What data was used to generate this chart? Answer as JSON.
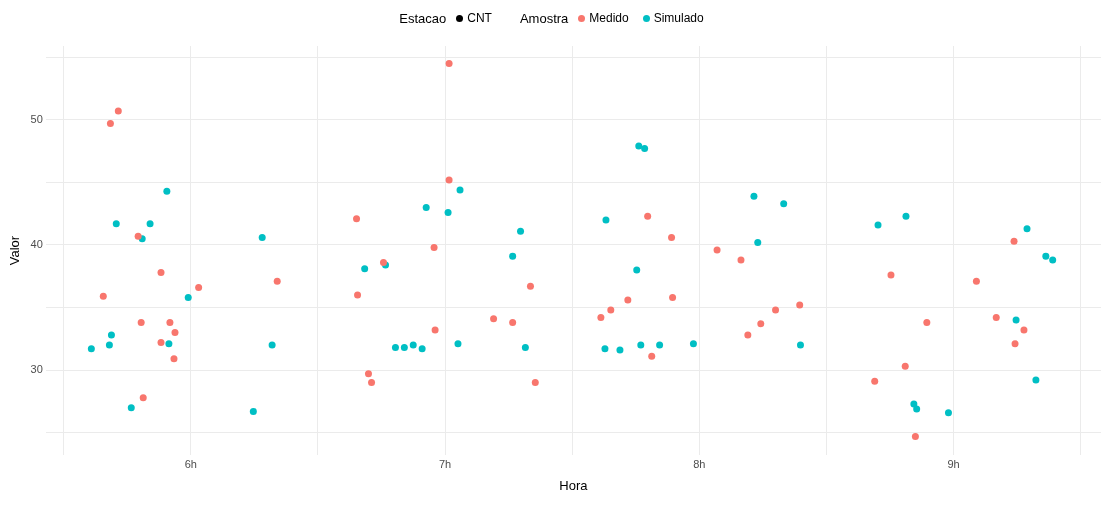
{
  "chart_data": {
    "type": "scatter",
    "xlabel": "Hora",
    "ylabel": "Valor",
    "legend_title": "Amostra",
    "annotations": [
      "Estacao",
      "CNT"
    ],
    "legend": "top",
    "grid": true,
    "marker": "circle",
    "xlim": [
      5.43,
      9.58
    ],
    "xticks": [
      {
        "value": 5.5,
        "label": null
      },
      {
        "value": 6,
        "label": "6h"
      },
      {
        "value": 6.5,
        "label": null
      },
      {
        "value": 7,
        "label": "7h"
      },
      {
        "value": 7.5,
        "label": null
      },
      {
        "value": 8,
        "label": "8h"
      },
      {
        "value": 8.5,
        "label": null
      },
      {
        "value": 9,
        "label": "9h"
      },
      {
        "value": 9.5,
        "label": null
      }
    ],
    "ylim": [
      23.2,
      55.9
    ],
    "yticks": [
      {
        "value": 25,
        "label": null
      },
      30,
      {
        "value": 35,
        "label": null
      },
      40,
      {
        "value": 45,
        "label": null
      },
      50,
      {
        "value": 55,
        "label": null
      }
    ],
    "series": [
      {
        "name": "Medido",
        "color": "#f8766d",
        "x": [
          5.656,
          5.684,
          5.715,
          5.793,
          5.805,
          5.813,
          5.883,
          5.883,
          5.918,
          5.938,
          5.934,
          6.031,
          6.34,
          6.652,
          6.656,
          6.699,
          6.711,
          6.758,
          6.957,
          6.961,
          7.016,
          7.016,
          7.191,
          7.266,
          7.336,
          7.355,
          7.613,
          7.652,
          7.719,
          7.797,
          7.813,
          7.891,
          7.895,
          8.07,
          8.164,
          8.191,
          8.242,
          8.3,
          8.395,
          8.69,
          8.754,
          8.81,
          8.85,
          8.895,
          9.09,
          9.168,
          9.238,
          9.242,
          9.277
        ],
        "values": [
          35.9,
          49.7,
          50.7,
          40.7,
          33.8,
          27.8,
          37.8,
          32.2,
          33.8,
          33.0,
          30.9,
          36.6,
          37.1,
          42.1,
          36.0,
          29.7,
          29.0,
          38.6,
          39.8,
          33.2,
          54.5,
          45.2,
          34.1,
          33.8,
          36.7,
          29.0,
          34.2,
          34.8,
          35.6,
          42.3,
          31.1,
          40.6,
          35.8,
          39.6,
          38.8,
          32.8,
          33.7,
          34.8,
          35.2,
          29.1,
          37.6,
          30.3,
          24.7,
          33.8,
          37.1,
          34.2,
          40.3,
          32.1,
          33.2
        ]
      },
      {
        "name": "Simulado",
        "color": "#00bfc4",
        "x": [
          5.609,
          5.68,
          5.688,
          5.707,
          5.766,
          5.809,
          5.84,
          5.906,
          5.914,
          5.99,
          6.246,
          6.281,
          6.32,
          6.684,
          6.766,
          6.805,
          6.84,
          6.875,
          6.91,
          6.926,
          7.012,
          7.059,
          7.051,
          7.266,
          7.297,
          7.316,
          7.629,
          7.633,
          7.688,
          7.754,
          7.762,
          7.785,
          7.77,
          7.844,
          7.977,
          8.215,
          8.23,
          8.332,
          8.398,
          8.703,
          8.813,
          8.844,
          8.855,
          8.98,
          9.246,
          9.289,
          9.324,
          9.363,
          9.39
        ],
        "values": [
          31.7,
          32.0,
          32.8,
          41.7,
          27.0,
          40.5,
          41.7,
          44.3,
          32.1,
          35.8,
          26.7,
          40.6,
          32.0,
          38.1,
          38.4,
          31.8,
          31.8,
          32.0,
          31.7,
          43.0,
          42.6,
          44.4,
          32.1,
          39.1,
          41.1,
          31.8,
          31.7,
          42.0,
          31.6,
          38.0,
          47.9,
          47.7,
          32.0,
          32.0,
          32.1,
          43.9,
          40.2,
          43.3,
          32.0,
          41.6,
          42.3,
          27.3,
          26.9,
          26.6,
          34.0,
          41.3,
          29.2,
          39.1,
          38.8
        ]
      }
    ]
  }
}
